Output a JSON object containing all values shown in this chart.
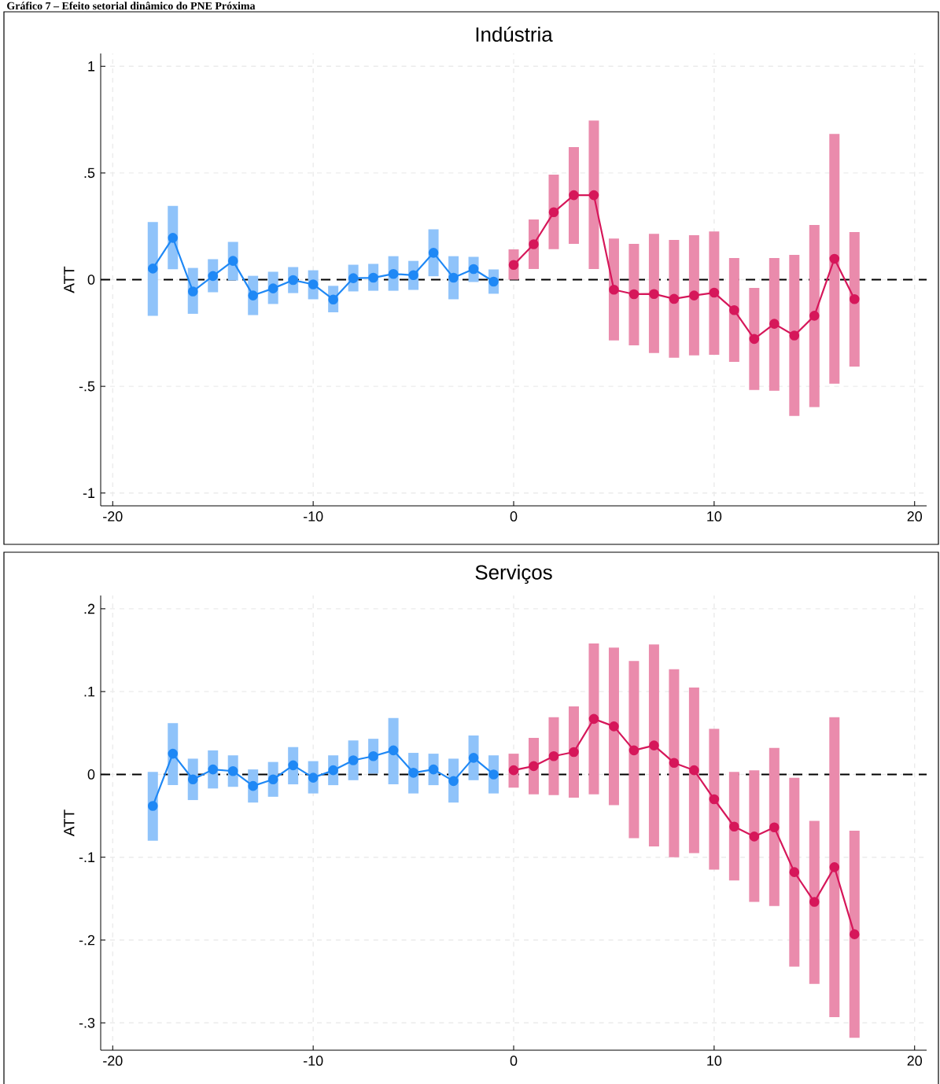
{
  "chart_data": [
    {
      "type": "line",
      "title": "Indústria",
      "ylabel": "ATT",
      "annotations": [
        "Gráfico 7 – Efeito setorial dinâmico do PNE Próxima"
      ],
      "xlim": [
        -20.6,
        20.6
      ],
      "ylim": [
        -1.06,
        1.06
      ],
      "xticks": [
        -20,
        -10,
        0,
        10,
        20
      ],
      "yticks": [
        -1,
        {
          "value": -0.5,
          "label": "-.5"
        },
        0,
        {
          "value": 0.5,
          "label": ".5"
        },
        1
      ],
      "grid": true,
      "marker": "circle",
      "line_style": "solid",
      "ref_lines": [
        {
          "axis": "y",
          "value": 0,
          "color": "#000000",
          "line_style": "dashed"
        }
      ],
      "series": [
        {
          "color": "#1f88f5",
          "x": [
            -18,
            -17,
            -16,
            -15,
            -14,
            -13,
            -12,
            -11,
            -10,
            -9,
            -8,
            -7,
            -6,
            -5,
            -4,
            -3,
            -2,
            -1
          ],
          "values": [
            0.052,
            0.196,
            -0.055,
            0.017,
            0.088,
            -0.074,
            -0.041,
            -0.002,
            -0.022,
            -0.093,
            0.007,
            0.009,
            0.027,
            0.021,
            0.126,
            0.009,
            0.05,
            -0.009
          ],
          "errors": [
            [
              -0.17,
              0.27
            ],
            [
              0.049,
              0.346
            ],
            [
              -0.16,
              0.055
            ],
            [
              -0.059,
              0.096
            ],
            [
              -0.004,
              0.177
            ],
            [
              -0.166,
              0.018
            ],
            [
              -0.114,
              0.037
            ],
            [
              -0.063,
              0.059
            ],
            [
              -0.092,
              0.044
            ],
            [
              -0.153,
              -0.029
            ],
            [
              -0.055,
              0.07
            ],
            [
              -0.052,
              0.074
            ],
            [
              -0.052,
              0.11
            ],
            [
              -0.048,
              0.088
            ],
            [
              0.016,
              0.236
            ],
            [
              -0.092,
              0.11
            ],
            [
              -0.011,
              0.107
            ],
            [
              -0.066,
              0.048
            ]
          ]
        },
        {
          "color": "#d6175a",
          "x": [
            0,
            1,
            2,
            3,
            4,
            5,
            6,
            7,
            8,
            9,
            10,
            11,
            12,
            13,
            14,
            15,
            16,
            17
          ],
          "values": [
            0.069,
            0.166,
            0.316,
            0.396,
            0.396,
            -0.047,
            -0.068,
            -0.067,
            -0.09,
            -0.074,
            -0.061,
            -0.143,
            -0.278,
            -0.207,
            -0.262,
            -0.169,
            0.098,
            -0.091
          ],
          "errors": [
            [
              0.0,
              0.142
            ],
            [
              0.05,
              0.282
            ],
            [
              0.143,
              0.492
            ],
            [
              0.168,
              0.621
            ],
            [
              0.05,
              0.746
            ],
            [
              -0.285,
              0.193
            ],
            [
              -0.308,
              0.168
            ],
            [
              -0.344,
              0.215
            ],
            [
              -0.366,
              0.186
            ],
            [
              -0.355,
              0.208
            ],
            [
              -0.352,
              0.226
            ],
            [
              -0.385,
              0.101
            ],
            [
              -0.517,
              -0.039
            ],
            [
              -0.521,
              0.101
            ],
            [
              -0.639,
              0.116
            ],
            [
              -0.597,
              0.256
            ],
            [
              -0.488,
              0.683
            ],
            [
              -0.407,
              0.223
            ]
          ]
        }
      ]
    },
    {
      "type": "line",
      "title": "Serviços",
      "ylabel": "ATT",
      "xlim": [
        -20.6,
        20.6
      ],
      "ylim": [
        -0.333,
        0.216
      ],
      "xticks": [
        -20,
        -10,
        0,
        10,
        20
      ],
      "yticks": [
        {
          "value": -0.3,
          "label": "-.3"
        },
        {
          "value": -0.2,
          "label": "-.2"
        },
        {
          "value": -0.1,
          "label": "-.1"
        },
        0,
        {
          "value": 0.1,
          "label": ".1"
        },
        {
          "value": 0.2,
          "label": ".2"
        }
      ],
      "grid": true,
      "marker": "circle",
      "line_style": "solid",
      "ref_lines": [
        {
          "axis": "y",
          "value": 0,
          "color": "#000000",
          "line_style": "dashed"
        }
      ],
      "series": [
        {
          "color": "#1f88f5",
          "x": [
            -18,
            -17,
            -16,
            -15,
            -14,
            -13,
            -12,
            -11,
            -10,
            -9,
            -8,
            -7,
            -6,
            -5,
            -4,
            -3,
            -2,
            -1
          ],
          "values": [
            -0.038,
            0.025,
            -0.006,
            0.006,
            0.004,
            -0.014,
            -0.006,
            0.011,
            -0.004,
            0.005,
            0.017,
            0.022,
            0.029,
            0.002,
            0.006,
            -0.008,
            0.02,
            0.0
          ],
          "errors": [
            [
              -0.08,
              0.003
            ],
            [
              -0.013,
              0.062
            ],
            [
              -0.031,
              0.019
            ],
            [
              -0.017,
              0.029
            ],
            [
              -0.015,
              0.023
            ],
            [
              -0.034,
              0.006
            ],
            [
              -0.027,
              0.015
            ],
            [
              -0.012,
              0.033
            ],
            [
              -0.023,
              0.016
            ],
            [
              -0.013,
              0.023
            ],
            [
              -0.007,
              0.041
            ],
            [
              0.001,
              0.043
            ],
            [
              -0.012,
              0.068
            ],
            [
              -0.023,
              0.026
            ],
            [
              -0.013,
              0.025
            ],
            [
              -0.034,
              0.019
            ],
            [
              -0.007,
              0.047
            ],
            [
              -0.023,
              0.023
            ]
          ]
        },
        {
          "color": "#d6175a",
          "x": [
            0,
            1,
            2,
            3,
            4,
            5,
            6,
            7,
            8,
            9,
            10,
            11,
            12,
            13,
            14,
            15,
            16,
            17
          ],
          "values": [
            0.005,
            0.01,
            0.022,
            0.027,
            0.067,
            0.058,
            0.029,
            0.035,
            0.014,
            0.005,
            -0.03,
            -0.063,
            -0.075,
            -0.064,
            -0.118,
            -0.154,
            -0.112,
            -0.193
          ],
          "errors": [
            [
              -0.016,
              0.025
            ],
            [
              -0.024,
              0.044
            ],
            [
              -0.025,
              0.069
            ],
            [
              -0.028,
              0.082
            ],
            [
              -0.024,
              0.158
            ],
            [
              -0.037,
              0.153
            ],
            [
              -0.077,
              0.137
            ],
            [
              -0.087,
              0.157
            ],
            [
              -0.1,
              0.127
            ],
            [
              -0.095,
              0.105
            ],
            [
              -0.115,
              0.055
            ],
            [
              -0.128,
              0.003
            ],
            [
              -0.154,
              0.005
            ],
            [
              -0.159,
              0.032
            ],
            [
              -0.232,
              -0.004
            ],
            [
              -0.253,
              -0.056
            ],
            [
              -0.293,
              0.069
            ],
            [
              -0.318,
              -0.068
            ]
          ]
        }
      ]
    }
  ]
}
